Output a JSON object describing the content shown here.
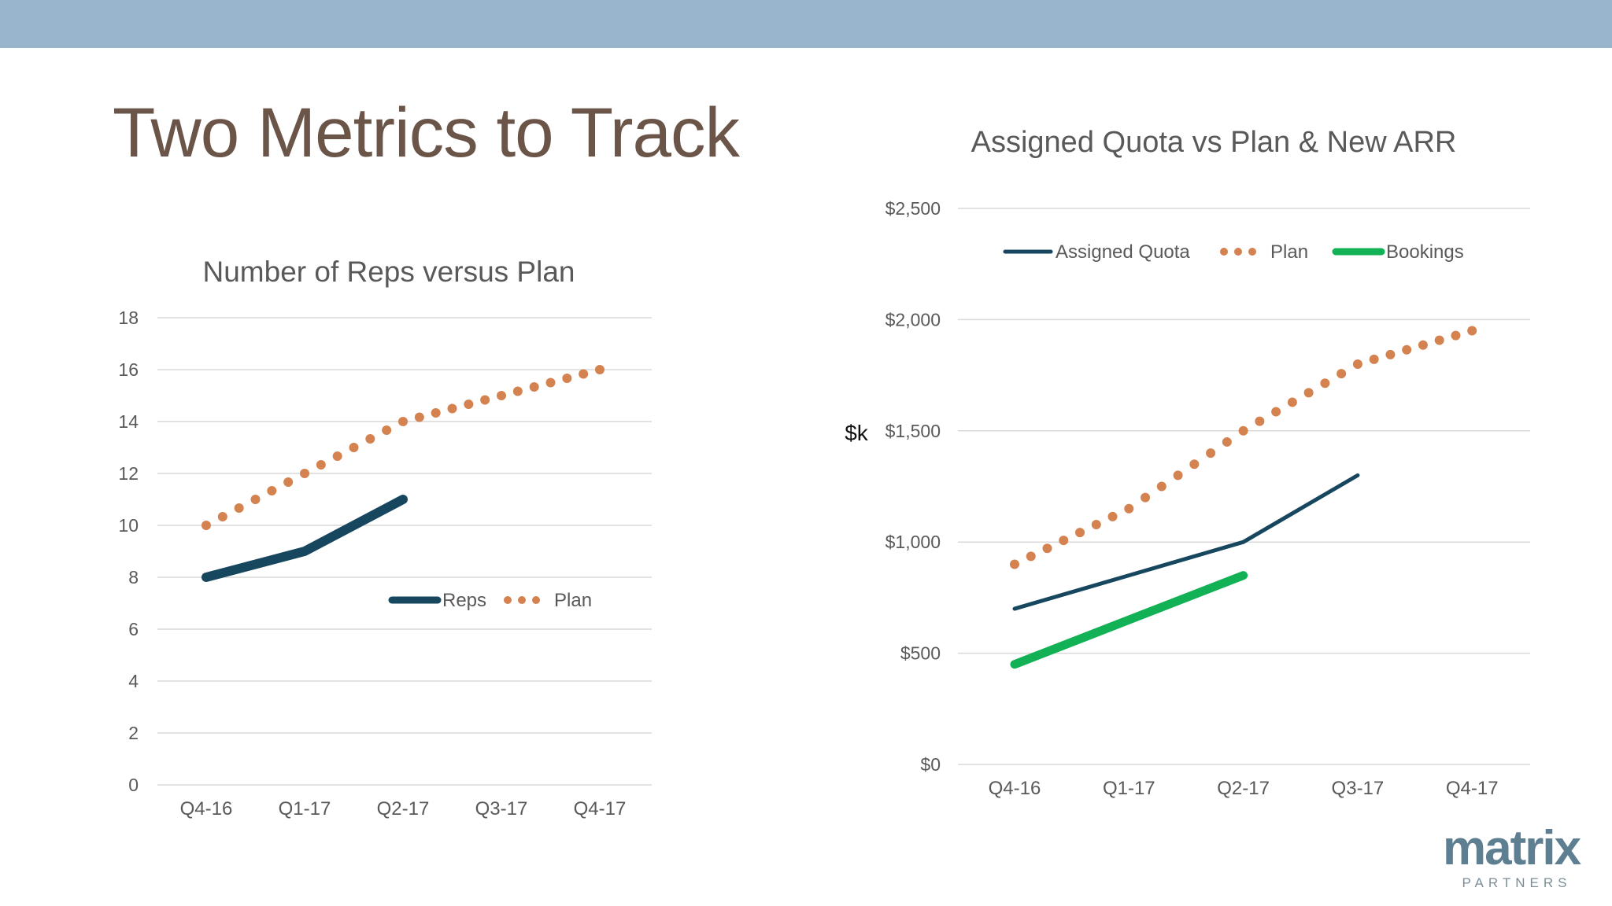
{
  "slide": {
    "title": "Two Metrics to Track"
  },
  "colors": {
    "band": "#98b5cd",
    "title": "#6b5549",
    "axis_text": "#595959",
    "grid": "#d9d9d9",
    "navy": "#17475f",
    "orange": "#d4824f",
    "green": "#12b156"
  },
  "logo": {
    "word": "matrix",
    "sub": "PARTNERS"
  },
  "chart_data": [
    {
      "type": "line",
      "title": "Number of Reps versus Plan",
      "xlabel": "",
      "ylabel": "",
      "categories": [
        "Q4-16",
        "Q1-17",
        "Q2-17",
        "Q3-17",
        "Q4-17"
      ],
      "ylim": [
        0,
        18
      ],
      "yticks": [
        0,
        2,
        4,
        6,
        8,
        10,
        12,
        14,
        16,
        18
      ],
      "ytick_labels": [
        "0",
        "2",
        "4",
        "6",
        "8",
        "10",
        "12",
        "14",
        "16",
        "18"
      ],
      "grid": true,
      "legend": "center-right",
      "series": [
        {
          "name": "Reps",
          "style": "solid",
          "values": [
            8,
            9,
            11,
            null,
            null
          ]
        },
        {
          "name": "Plan",
          "style": "dotted",
          "values": [
            10,
            12,
            14,
            15,
            16
          ]
        }
      ]
    },
    {
      "type": "line",
      "title": "Assigned Quota vs Plan & New ARR",
      "xlabel": "",
      "ylabel": "$k",
      "categories": [
        "Q4-16",
        "Q1-17",
        "Q2-17",
        "Q3-17",
        "Q4-17"
      ],
      "ylim": [
        0,
        2500
      ],
      "yticks": [
        0,
        500,
        1000,
        1500,
        2000,
        2500
      ],
      "ytick_labels": [
        "$0",
        "$500",
        "$1,000",
        "$1,500",
        "$2,000",
        "$2,500"
      ],
      "grid": true,
      "legend": "top",
      "series": [
        {
          "name": "Assigned Quota",
          "style": "solid",
          "values": [
            700,
            850,
            1000,
            1300,
            null
          ]
        },
        {
          "name": "Plan",
          "style": "dotted",
          "values": [
            900,
            1150,
            1500,
            1800,
            1950
          ]
        },
        {
          "name": "Bookings",
          "style": "solid",
          "values": [
            450,
            650,
            850,
            null,
            null
          ]
        }
      ]
    }
  ]
}
